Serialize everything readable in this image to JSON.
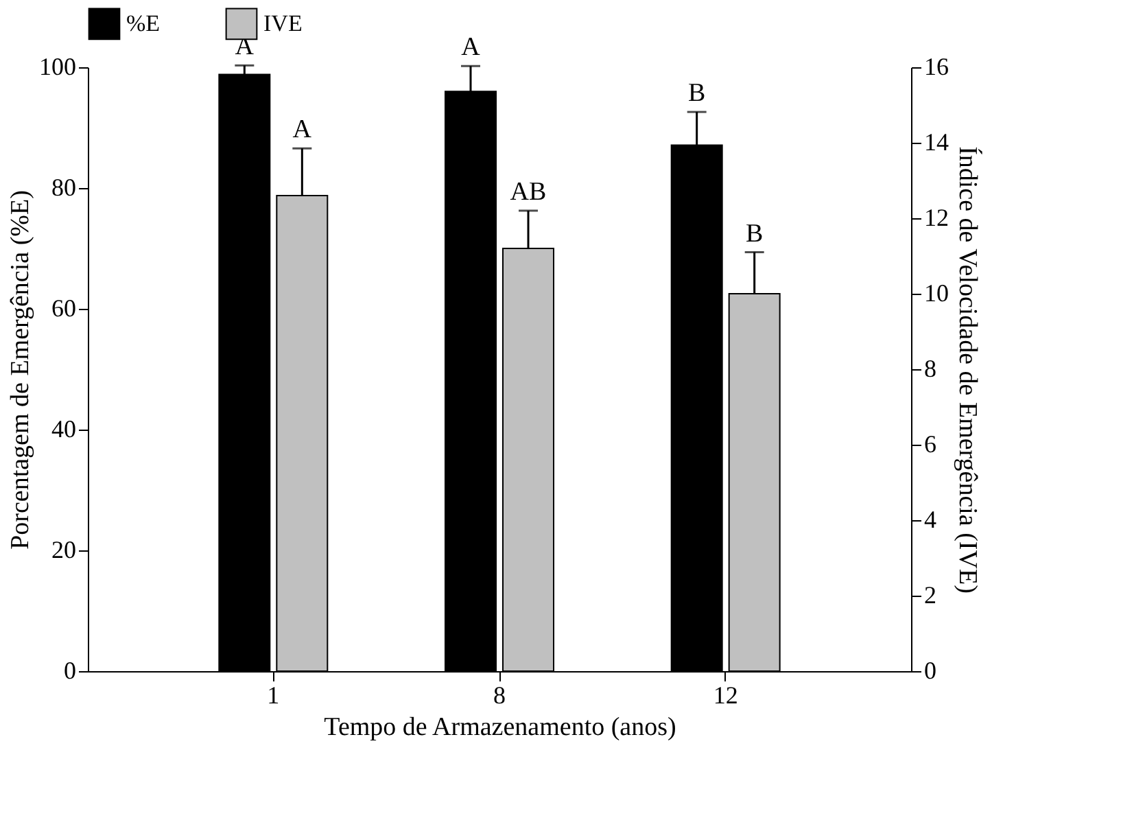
{
  "chart_data": {
    "type": "bar",
    "xlabel": "Tempo de Armazenamento (anos)",
    "ylabel": "Porcentagem de Emergência (%E)",
    "y2label": "Índice de Velocidade de Emergência (IVE)",
    "categories": [
      "1",
      "8",
      "12"
    ],
    "series": [
      {
        "name": "%E",
        "color": "#000000",
        "values": [
          98.8,
          96.0,
          87.1
        ],
        "errors": [
          [
            98.8,
            100.3
          ],
          [
            96.0,
            100.2
          ],
          [
            87.1,
            92.6
          ]
        ],
        "value_labels": [
          "A",
          "A",
          "B"
        ]
      },
      {
        "name": "IVE",
        "color": "#c0c0c0",
        "axis": "y2",
        "values": [
          12.6,
          11.2,
          10.0
        ],
        "errors": [
          [
            12.6,
            13.85
          ],
          [
            11.2,
            12.2
          ],
          [
            10.0,
            11.1
          ]
        ],
        "value_labels": [
          "A",
          "AB",
          "B"
        ]
      }
    ],
    "ylim": [
      0,
      100
    ],
    "yticks": [
      0,
      20,
      40,
      60,
      80,
      100
    ],
    "y2lim": [
      0,
      16
    ],
    "y2ticks": [
      0,
      2,
      4,
      6,
      8,
      10,
      12,
      14,
      16
    ],
    "legend": "top",
    "grid": false
  }
}
